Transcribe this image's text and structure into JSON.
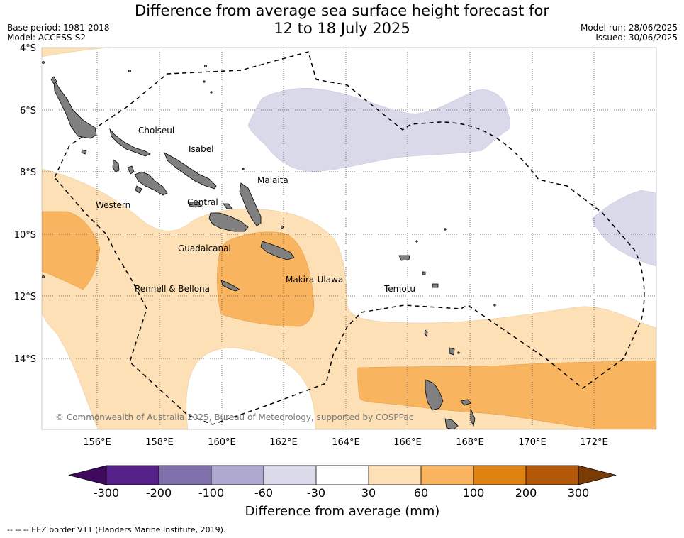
{
  "header": {
    "title_line1": "Difference from average sea surface height forecast for",
    "title_line2": "12 to 18 July 2025",
    "base_period": "Base period: 1981-2018",
    "model": "Model: ACCESS-S2",
    "model_run": "Model run: 28/06/2025",
    "issued": "Issued: 30/06/2025"
  },
  "map": {
    "lat_labels": [
      "4°S",
      "6°S",
      "8°S",
      "10°S",
      "12°S",
      "14°S"
    ],
    "lon_labels": [
      "156°E",
      "158°E",
      "160°E",
      "162°E",
      "164°E",
      "166°E",
      "168°E",
      "170°E",
      "172°E"
    ],
    "provinces": [
      "Choiseul",
      "Isabel",
      "Malaita",
      "Western",
      "Central",
      "Guadalcanal",
      "Makira-Ulawa",
      "Rennell & Bellona",
      "Temotu"
    ],
    "copyright": "© Commonwealth of Australia 2025, Bureau of Meteorology, supported by COSPPac",
    "land_color": "#808080",
    "gridlines": true
  },
  "colorbar": {
    "title": "Difference from average (mm)",
    "ticks": [
      "-300",
      "-200",
      "-100",
      "-60",
      "-30",
      "30",
      "60",
      "100",
      "200",
      "300"
    ],
    "colors": [
      "#3f0a5e",
      "#552188",
      "#7f6faa",
      "#aea7d0",
      "#d9d9ea",
      "#ffffff",
      "#fde0b6",
      "#f8b45e",
      "#e0820f",
      "#b35806",
      "#7a3b05"
    ]
  },
  "footer": {
    "eez_note": "--  --  -- EEZ border V11 (Flanders Marine Institute, 2019)."
  }
}
